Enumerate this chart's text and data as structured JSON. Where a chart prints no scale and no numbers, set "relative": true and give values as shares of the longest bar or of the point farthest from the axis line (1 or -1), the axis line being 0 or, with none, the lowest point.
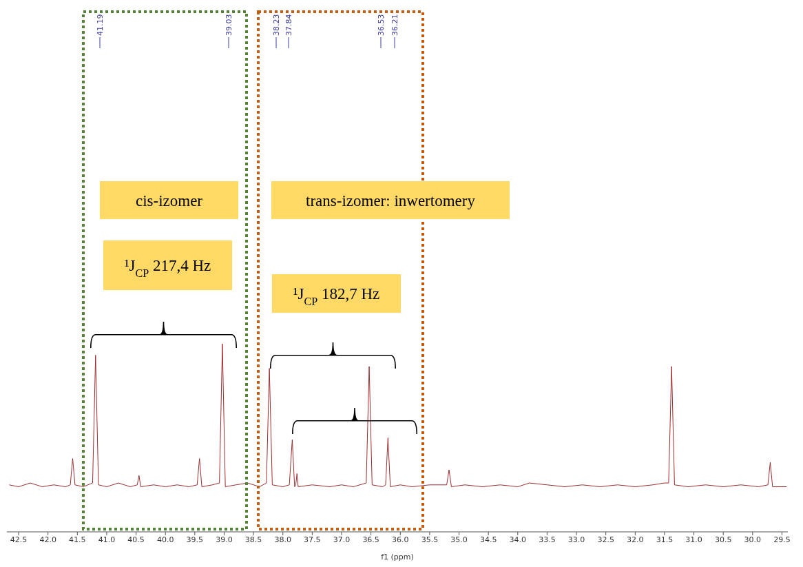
{
  "chart_data": {
    "type": "line",
    "relative": true,
    "xlabel": "f1 (ppm)",
    "xlim": [
      42.7,
      29.4
    ],
    "xticks": [
      42.5,
      {
        "value": 42,
        "label": "42.0"
      },
      41.5,
      {
        "value": 41,
        "label": "41.0"
      },
      40.5,
      {
        "value": 40,
        "label": "40.0"
      },
      39.5,
      {
        "value": 39,
        "label": "39.0"
      },
      38.5,
      {
        "value": 38,
        "label": "38.0"
      },
      37.5,
      {
        "value": 37,
        "label": "37.0"
      },
      36.5,
      {
        "value": 36,
        "label": "36.0"
      },
      35.5,
      {
        "value": 35,
        "label": "35.0"
      },
      34.5,
      {
        "value": 34,
        "label": "34.0"
      },
      33.5,
      {
        "value": 33,
        "label": "33.0"
      },
      32.5,
      {
        "value": 32,
        "label": "32.0"
      },
      31.5,
      {
        "value": 31,
        "label": "31.0"
      },
      30.5,
      {
        "value": 30,
        "label": "30.0"
      },
      29.5
    ],
    "series": [
      {
        "color": "#9b2d30",
        "x": [
          42.66,
          42.5,
          42.3,
          42.1,
          41.9,
          41.7,
          41.62,
          41.58,
          41.54,
          41.4,
          41.24,
          41.19,
          41.14,
          41.0,
          40.8,
          40.6,
          40.48,
          40.45,
          40.42,
          40.2,
          40.0,
          39.8,
          39.6,
          39.46,
          39.42,
          39.38,
          39.2,
          39.08,
          39.03,
          38.98,
          38.8,
          38.6,
          38.4,
          38.28,
          38.23,
          38.18,
          38.0,
          37.89,
          37.84,
          37.8,
          37.78,
          37.76,
          37.74,
          37.5,
          37.2,
          37.0,
          36.8,
          36.58,
          36.53,
          36.48,
          36.3,
          36.25,
          36.21,
          36.17,
          36.0,
          35.8,
          35.5,
          35.21,
          35.17,
          35.13,
          34.9,
          34.6,
          34.3,
          34.0,
          33.8,
          33.5,
          33.2,
          32.9,
          32.6,
          32.3,
          32.0,
          31.7,
          31.5,
          31.43,
          31.38,
          31.33,
          31.1,
          30.8,
          30.5,
          30.2,
          29.9,
          29.74,
          29.7,
          29.66,
          29.42
        ],
        "values": [
          0.25,
          0.24,
          0.26,
          0.24,
          0.25,
          0.24,
          0.25,
          0.39,
          0.25,
          0.24,
          0.26,
          0.94,
          0.25,
          0.24,
          0.26,
          0.24,
          0.25,
          0.3,
          0.24,
          0.25,
          0.24,
          0.25,
          0.24,
          0.25,
          0.39,
          0.24,
          0.25,
          0.26,
          1.0,
          0.24,
          0.25,
          0.26,
          0.24,
          0.26,
          0.87,
          0.25,
          0.24,
          0.25,
          0.49,
          0.24,
          0.25,
          0.31,
          0.24,
          0.25,
          0.24,
          0.25,
          0.24,
          0.26,
          0.88,
          0.25,
          0.24,
          0.25,
          0.5,
          0.24,
          0.25,
          0.24,
          0.25,
          0.25,
          0.33,
          0.24,
          0.25,
          0.24,
          0.25,
          0.24,
          0.26,
          0.25,
          0.24,
          0.25,
          0.24,
          0.25,
          0.24,
          0.25,
          0.26,
          0.26,
          0.88,
          0.25,
          0.24,
          0.25,
          0.24,
          0.25,
          0.24,
          0.25,
          0.37,
          0.24,
          0.24
        ]
      }
    ],
    "annotations": [
      "41.19",
      "39.03",
      "38.23",
      "37.84",
      "36.53",
      "36.21",
      "cis-izomer",
      "trans-izomer: inwertomery",
      "¹J$_{CP}$ 217,4 Hz",
      "¹J$_{CP}$ 182,7 Hz"
    ]
  }
}
